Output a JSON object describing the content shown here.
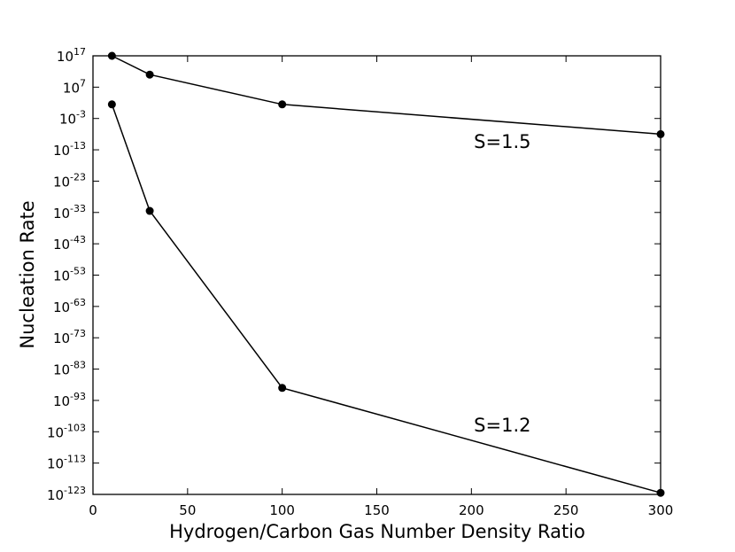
{
  "chart_data": {
    "type": "line",
    "xlabel": "Hydrogen/Carbon Gas Number Density Ratio",
    "ylabel": "Nucleation Rate",
    "xlim": [
      0,
      300
    ],
    "ylim_log10": [
      -123,
      17
    ],
    "y_scale": "log",
    "grid": false,
    "x_ticks": [
      {
        "value": 0,
        "label": "0"
      },
      {
        "value": 50,
        "label": "50"
      },
      {
        "value": 100,
        "label": "100"
      },
      {
        "value": 150,
        "label": "150"
      },
      {
        "value": 200,
        "label": "200"
      },
      {
        "value": 250,
        "label": "250"
      },
      {
        "value": 300,
        "label": "300"
      }
    ],
    "y_ticks": [
      {
        "exp": 17,
        "base": "10",
        "power": "17"
      },
      {
        "exp": 7,
        "base": "10",
        "power": "7"
      },
      {
        "exp": -3,
        "base": "10",
        "power": "-3"
      },
      {
        "exp": -13,
        "base": "10",
        "power": "-13"
      },
      {
        "exp": -23,
        "base": "10",
        "power": "-23"
      },
      {
        "exp": -33,
        "base": "10",
        "power": "-33"
      },
      {
        "exp": -43,
        "base": "10",
        "power": "-43"
      },
      {
        "exp": -53,
        "base": "10",
        "power": "-53"
      },
      {
        "exp": -63,
        "base": "10",
        "power": "-63"
      },
      {
        "exp": -73,
        "base": "10",
        "power": "-73"
      },
      {
        "exp": -83,
        "base": "10",
        "power": "-83"
      },
      {
        "exp": -93,
        "base": "10",
        "power": "-93"
      },
      {
        "exp": -103,
        "base": "10",
        "power": "-103"
      },
      {
        "exp": -113,
        "base": "10",
        "power": "-113"
      },
      {
        "exp": -123,
        "base": "10",
        "power": "-123"
      }
    ],
    "series": [
      {
        "label": "S=1.5",
        "x": [
          10,
          30,
          100,
          300
        ],
        "log10_y": [
          17,
          11,
          1.5,
          -8
        ]
      },
      {
        "label": "S=1.2",
        "x": [
          10,
          30,
          100,
          300
        ],
        "log10_y": [
          1.5,
          -32.5,
          -89,
          -122.5
        ]
      }
    ],
    "annotations": [
      {
        "text": "S=1.5",
        "x": 200,
        "log10_y": -10.5
      },
      {
        "text": "S=1.2",
        "x": 200,
        "log10_y": -101
      }
    ]
  }
}
